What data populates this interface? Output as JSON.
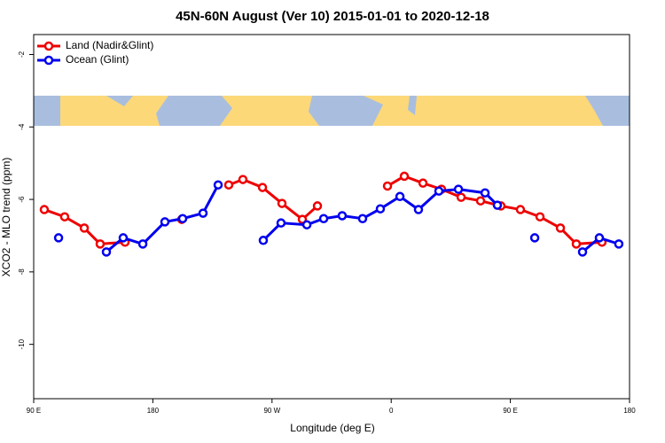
{
  "chart_data": {
    "type": "line",
    "title": "45N-60N August (Ver 10)   2015-01-01 to 2020-12-18",
    "xlabel": "Longitude (deg E)",
    "ylabel": "XCO2 - MLO trend (ppm)",
    "xlim": [
      90,
      540
    ],
    "ylim": [
      -11.5,
      -1.45
    ],
    "xticks": [
      {
        "value": 90,
        "label": "90 E"
      },
      180,
      {
        "value": 270,
        "label": "90 W"
      },
      {
        "value": 360,
        "label": "0"
      },
      {
        "value": 450,
        "label": "90 E"
      },
      {
        "value": 540,
        "label": "180"
      }
    ],
    "yticks": [
      -2,
      -4,
      -6,
      -8,
      -10
    ],
    "legend": "top-left",
    "series": [
      {
        "name": "Land (Nadir&Glint)",
        "color": "#ee0000",
        "x": [
          98,
          113.4,
          128.2,
          140.2,
          159,
          null,
          201.8,
          null,
          237.3,
          248,
          262.8,
          277.5,
          292.9,
          304.3,
          null,
          357.2,
          369.9,
          384,
          398,
          412.8,
          427.5,
          442.9,
          457.6,
          472.4,
          487.8,
          499.8,
          519.2
        ],
        "values": [
          -6.28,
          -6.48,
          -6.79,
          -7.23,
          -7.18,
          null,
          -6.55,
          null,
          -5.6,
          -5.45,
          -5.67,
          -6.11,
          -6.55,
          -6.18,
          null,
          -5.63,
          -5.36,
          -5.55,
          -5.72,
          -5.94,
          -6.04,
          -6.18,
          -6.28,
          -6.48,
          -6.79,
          -7.23,
          -7.18
        ]
      },
      {
        "name": "Ocean (Glint)",
        "color": "#0000ee",
        "x": [
          108.8,
          null,
          144.9,
          157.6,
          172.4,
          189.1,
          202.5,
          217.9,
          229.3,
          null,
          263.4,
          276.8,
          296.3,
          309,
          323,
          338.4,
          351.8,
          366.6,
          380.6,
          396,
          410.8,
          430.9,
          440.2,
          null,
          468.4,
          null,
          504.5,
          517.2,
          531.9
        ],
        "values": [
          -7.06,
          null,
          -7.45,
          -7.06,
          -7.23,
          -6.62,
          -6.53,
          -6.38,
          -5.6,
          null,
          -7.13,
          -6.65,
          -6.7,
          -6.53,
          -6.45,
          -6.53,
          -6.26,
          -5.92,
          -6.28,
          -5.77,
          -5.72,
          -5.82,
          -6.16,
          null,
          -7.06,
          null,
          -7.45,
          -7.06,
          -7.23
        ]
      }
    ]
  }
}
